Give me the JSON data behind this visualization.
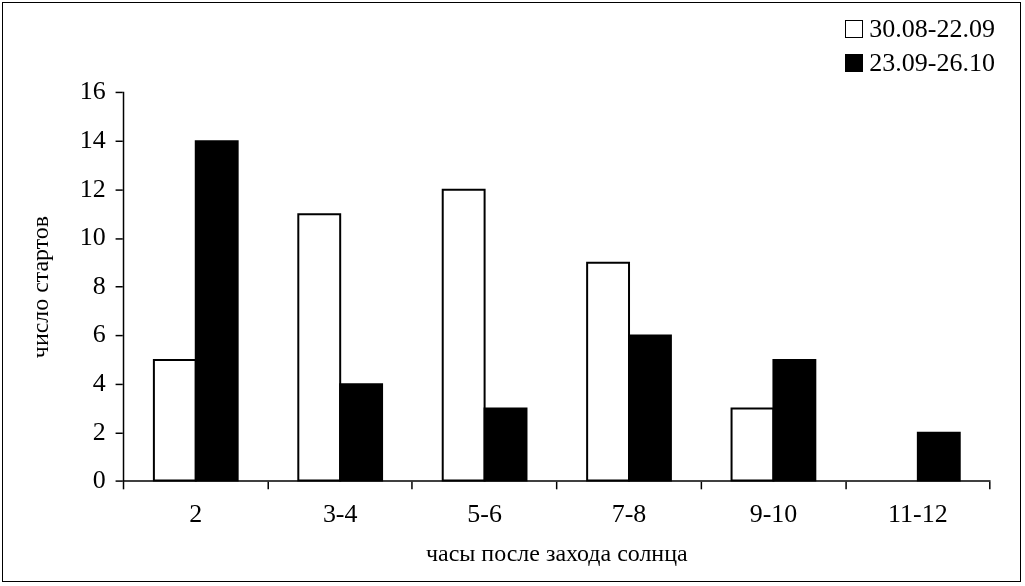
{
  "chart_data": {
    "type": "bar",
    "xlabel": "часы после захода солнца",
    "ylabel": "число стартов",
    "categories": [
      "2",
      "3-4",
      "5-6",
      "7-8",
      "9-10",
      "11-12"
    ],
    "series": [
      {
        "name": "30.08-22.09",
        "color": "#ffffff",
        "values": [
          5,
          11,
          12,
          9,
          3,
          0
        ]
      },
      {
        "name": "23.09-26.10",
        "color": "#000000",
        "values": [
          14,
          4,
          3,
          6,
          5,
          2
        ]
      }
    ],
    "ylim": [
      0,
      16
    ],
    "yticks": [
      0,
      2,
      4,
      6,
      8,
      10,
      12,
      14,
      16
    ],
    "grid": false,
    "legend": "top right"
  }
}
